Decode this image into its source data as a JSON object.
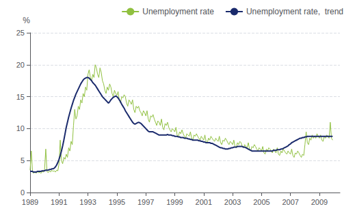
{
  "chart_data": {
    "type": "line",
    "ylabel": "%",
    "x": [
      1989,
      1989.0833333333333,
      1989.1666666666667,
      1989.25,
      1989.3333333333333,
      1989.4166666666667,
      1989.5,
      1989.5833333333333,
      1989.6666666666667,
      1989.75,
      1989.8333333333333,
      1989.9166666666667,
      1990,
      1990.0833333333333,
      1990.1666666666667,
      1990.25,
      1990.3333333333333,
      1990.4166666666667,
      1990.5,
      1990.5833333333333,
      1990.6666666666667,
      1990.75,
      1990.8333333333333,
      1990.9166666666667,
      1991,
      1991.0833333333333,
      1991.1666666666667,
      1991.25,
      1991.3333333333333,
      1991.4166666666667,
      1991.5,
      1991.5833333333333,
      1991.6666666666667,
      1991.75,
      1991.8333333333333,
      1991.9166666666667,
      1992,
      1992.0833333333333,
      1992.1666666666667,
      1992.25,
      1992.3333333333333,
      1992.4166666666667,
      1992.5,
      1992.5833333333333,
      1992.6666666666667,
      1992.75,
      1992.8333333333333,
      1992.9166666666667,
      1993,
      1993.0833333333333,
      1993.1666666666667,
      1993.25,
      1993.3333333333333,
      1993.4166666666667,
      1993.5,
      1993.5833333333333,
      1993.6666666666667,
      1993.75,
      1993.8333333333333,
      1993.9166666666667,
      1994,
      1994.0833333333333,
      1994.1666666666667,
      1994.25,
      1994.3333333333333,
      1994.4166666666667,
      1994.5,
      1994.5833333333333,
      1994.6666666666667,
      1994.75,
      1994.8333333333333,
      1994.9166666666667,
      1995,
      1995.0833333333333,
      1995.1666666666667,
      1995.25,
      1995.3333333333333,
      1995.4166666666667,
      1995.5,
      1995.5833333333333,
      1995.6666666666667,
      1995.75,
      1995.8333333333333,
      1995.9166666666667,
      1996,
      1996.0833333333333,
      1996.1666666666667,
      1996.25,
      1996.3333333333333,
      1996.4166666666667,
      1996.5,
      1996.5833333333333,
      1996.6666666666667,
      1996.75,
      1996.8333333333333,
      1996.9166666666667,
      1997,
      1997.0833333333333,
      1997.1666666666667,
      1997.25,
      1997.3333333333333,
      1997.4166666666667,
      1997.5,
      1997.5833333333333,
      1997.6666666666667,
      1997.75,
      1997.8333333333333,
      1997.9166666666667,
      1998,
      1998.0833333333333,
      1998.1666666666667,
      1998.25,
      1998.3333333333333,
      1998.4166666666667,
      1998.5,
      1998.5833333333333,
      1998.6666666666667,
      1998.75,
      1998.8333333333333,
      1998.9166666666667,
      1999,
      1999.0833333333333,
      1999.1666666666667,
      1999.25,
      1999.3333333333333,
      1999.4166666666667,
      1999.5,
      1999.5833333333333,
      1999.6666666666667,
      1999.75,
      1999.8333333333333,
      1999.9166666666667,
      2000,
      2000.0833333333333,
      2000.1666666666667,
      2000.25,
      2000.3333333333333,
      2000.4166666666667,
      2000.5,
      2000.5833333333333,
      2000.6666666666667,
      2000.75,
      2000.8333333333333,
      2000.9166666666667,
      2001,
      2001.0833333333333,
      2001.1666666666667,
      2001.25,
      2001.3333333333333,
      2001.4166666666667,
      2001.5,
      2001.5833333333333,
      2001.6666666666667,
      2001.75,
      2001.8333333333333,
      2001.9166666666667,
      2002,
      2002.0833333333333,
      2002.1666666666667,
      2002.25,
      2002.3333333333333,
      2002.4166666666667,
      2002.5,
      2002.5833333333333,
      2002.6666666666667,
      2002.75,
      2002.8333333333333,
      2002.9166666666667,
      2003,
      2003.0833333333333,
      2003.1666666666667,
      2003.25,
      2003.3333333333333,
      2003.4166666666667,
      2003.5,
      2003.5833333333333,
      2003.6666666666667,
      2003.75,
      2003.8333333333333,
      2003.9166666666667,
      2004,
      2004.0833333333333,
      2004.1666666666667,
      2004.25,
      2004.3333333333333,
      2004.4166666666667,
      2004.5,
      2004.5833333333333,
      2004.6666666666667,
      2004.75,
      2004.8333333333333,
      2004.9166666666667,
      2005,
      2005.0833333333333,
      2005.1666666666667,
      2005.25,
      2005.3333333333333,
      2005.4166666666667,
      2005.5,
      2005.5833333333333,
      2005.6666666666667,
      2005.75,
      2005.8333333333333,
      2005.9166666666667,
      2006,
      2006.0833333333333,
      2006.1666666666667,
      2006.25,
      2006.3333333333333,
      2006.4166666666667,
      2006.5,
      2006.5833333333333,
      2006.6666666666667,
      2006.75,
      2006.8333333333333,
      2006.9166666666667,
      2007,
      2007.0833333333333,
      2007.1666666666667,
      2007.25,
      2007.3333333333333,
      2007.4166666666667,
      2007.5,
      2007.5833333333333,
      2007.6666666666667,
      2007.75,
      2007.8333333333333,
      2007.9166666666667,
      2008,
      2008.0833333333333,
      2008.1666666666667,
      2008.25,
      2008.3333333333333,
      2008.4166666666667,
      2008.5,
      2008.5833333333333,
      2008.6666666666667,
      2008.75,
      2008.8333333333333,
      2008.9166666666667,
      2009,
      2009.0833333333333,
      2009.1666666666667,
      2009.25,
      2009.3333333333333,
      2009.4166666666667,
      2009.5,
      2009.5833333333333,
      2009.6666666666667,
      2009.75,
      2009.8333333333333,
      2009.9166666666667
    ],
    "series": [
      {
        "name": "Unemployment rate",
        "color": "#90c040",
        "values": [
          3.5,
          6.5,
          3.2,
          3.0,
          3.2,
          3.0,
          3.3,
          3.1,
          3.2,
          3.0,
          3.3,
          3.2,
          3.6,
          6.8,
          3.3,
          3.1,
          3.4,
          3.2,
          3.5,
          3.3,
          3.4,
          3.2,
          3.5,
          3.4,
          4.5,
          8.2,
          5.0,
          4.5,
          5.5,
          5.2,
          6.0,
          5.5,
          7.0,
          6.5,
          8.0,
          7.5,
          10.5,
          13.0,
          11.5,
          12.0,
          13.5,
          13.0,
          14.5,
          14.0,
          15.5,
          15.0,
          16.5,
          16.0,
          18.5,
          19.2,
          18.0,
          17.5,
          18.5,
          18.0,
          20.0,
          19.5,
          18.5,
          18.0,
          19.5,
          18.8,
          17.5,
          17.0,
          16.0,
          15.5,
          16.5,
          16.0,
          17.0,
          16.5,
          15.5,
          15.0,
          16.0,
          15.5,
          15.2,
          15.8,
          14.5,
          14.0,
          15.0,
          14.8,
          15.3,
          15.0,
          14.0,
          13.5,
          14.5,
          14.2,
          13.8,
          14.5,
          13.0,
          12.5,
          13.5,
          13.2,
          13.5,
          12.8,
          12.5,
          12.0,
          12.8,
          12.5,
          12.0,
          12.8,
          11.5,
          11.0,
          12.0,
          11.8,
          12.2,
          11.5,
          11.0,
          10.5,
          11.2,
          11.0,
          10.5,
          11.5,
          10.2,
          9.8,
          10.8,
          10.5,
          11.0,
          10.2,
          9.8,
          9.5,
          10.0,
          9.8,
          9.5,
          10.2,
          9.0,
          8.8,
          9.5,
          9.2,
          9.8,
          9.2,
          8.8,
          8.5,
          9.2,
          9.0,
          8.8,
          9.5,
          8.5,
          8.2,
          9.0,
          8.8,
          9.2,
          8.8,
          8.5,
          8.2,
          8.8,
          8.5,
          8.2,
          9.0,
          8.0,
          7.8,
          8.5,
          8.2,
          8.8,
          8.5,
          8.2,
          8.0,
          8.5,
          8.2,
          8.0,
          8.8,
          7.8,
          7.5,
          8.2,
          8.0,
          8.5,
          8.2,
          7.8,
          7.5,
          8.0,
          7.8,
          7.5,
          8.2,
          7.2,
          7.0,
          7.8,
          7.5,
          8.0,
          7.8,
          7.2,
          7.0,
          7.5,
          7.2,
          7.0,
          7.8,
          6.8,
          6.5,
          7.2,
          7.0,
          7.5,
          7.2,
          6.8,
          6.5,
          7.0,
          6.8,
          6.5,
          7.2,
          6.2,
          6.0,
          6.8,
          6.5,
          7.0,
          6.8,
          6.5,
          6.2,
          6.8,
          6.5,
          6.2,
          7.0,
          6.0,
          5.8,
          6.5,
          6.2,
          6.8,
          6.5,
          6.2,
          6.0,
          6.5,
          6.2,
          6.0,
          6.8,
          5.8,
          5.5,
          6.2,
          6.0,
          6.5,
          6.2,
          5.8,
          5.5,
          6.0,
          5.8,
          7.5,
          9.5,
          7.8,
          7.5,
          8.5,
          8.2,
          9.0,
          8.5,
          8.8,
          8.5,
          9.2,
          8.8,
          8.5,
          9.0,
          8.2,
          8.0,
          8.8,
          8.5,
          9.0,
          8.8,
          8.5,
          11.0,
          8.5,
          8.2
        ]
      },
      {
        "name": "Unemployment rate,  trend",
        "color": "#1a2a6c",
        "values": [
          3.3,
          3.3,
          3.3,
          3.2,
          3.2,
          3.2,
          3.3,
          3.3,
          3.3,
          3.3,
          3.4,
          3.4,
          3.4,
          3.5,
          3.5,
          3.5,
          3.6,
          3.6,
          3.7,
          3.7,
          3.8,
          4.0,
          4.3,
          4.7,
          5.2,
          5.8,
          6.5,
          7.3,
          8.2,
          9.2,
          10.2,
          11.0,
          11.8,
          12.5,
          13.2,
          13.8,
          14.4,
          14.9,
          15.4,
          15.8,
          16.2,
          16.6,
          17.0,
          17.3,
          17.6,
          17.8,
          17.9,
          18.0,
          18.0,
          17.9,
          17.7,
          17.5,
          17.2,
          17.0,
          16.8,
          16.5,
          16.2,
          15.9,
          15.6,
          15.3,
          15.0,
          14.8,
          14.6,
          14.4,
          14.2,
          14.0,
          14.2,
          14.5,
          14.7,
          14.9,
          15.0,
          15.1,
          15.0,
          14.8,
          14.5,
          14.2,
          13.8,
          13.5,
          13.2,
          12.8,
          12.5,
          12.2,
          11.9,
          11.6,
          11.3,
          11.0,
          10.8,
          10.7,
          10.8,
          10.9,
          11.0,
          10.9,
          10.8,
          10.6,
          10.4,
          10.2,
          10.0,
          9.8,
          9.6,
          9.5,
          9.5,
          9.5,
          9.5,
          9.4,
          9.3,
          9.2,
          9.1,
          9.0,
          9.0,
          9.0,
          9.0,
          9.0,
          9.0,
          9.0,
          9.1,
          9.0,
          9.0,
          9.0,
          8.9,
          8.9,
          8.8,
          8.8,
          8.8,
          8.7,
          8.7,
          8.6,
          8.6,
          8.6,
          8.5,
          8.5,
          8.5,
          8.4,
          8.4,
          8.3,
          8.3,
          8.2,
          8.2,
          8.2,
          8.2,
          8.2,
          8.1,
          8.1,
          8.0,
          8.0,
          7.9,
          7.9,
          7.8,
          7.8,
          7.8,
          7.8,
          7.7,
          7.7,
          7.6,
          7.5,
          7.4,
          7.3,
          7.2,
          7.1,
          7.0,
          7.0,
          6.9,
          6.9,
          6.8,
          6.8,
          6.8,
          6.9,
          6.9,
          7.0,
          7.0,
          7.1,
          7.1,
          7.1,
          7.2,
          7.2,
          7.2,
          7.2,
          7.2,
          7.1,
          7.1,
          7.0,
          6.9,
          6.8,
          6.7,
          6.6,
          6.5,
          6.5,
          6.5,
          6.5,
          6.5,
          6.5,
          6.5,
          6.5,
          6.5,
          6.5,
          6.5,
          6.5,
          6.5,
          6.5,
          6.5,
          6.5,
          6.5,
          6.5,
          6.6,
          6.6,
          6.6,
          6.7,
          6.7,
          6.7,
          6.8,
          6.8,
          6.9,
          7.0,
          7.1,
          7.2,
          7.3,
          7.5,
          7.6,
          7.8,
          7.9,
          8.0,
          8.1,
          8.2,
          8.3,
          8.4,
          8.5,
          8.5,
          8.6,
          8.6,
          8.7,
          8.7,
          8.8,
          8.8,
          8.8,
          8.8,
          8.8,
          8.8,
          8.8,
          8.8,
          8.8,
          8.8,
          8.8,
          8.8,
          8.8,
          8.8,
          8.8,
          8.8,
          8.8,
          8.8,
          8.8,
          8.8,
          8.8,
          8.8
        ]
      }
    ],
    "xlim": [
      1989.0,
      2010.42
    ],
    "xticks": [
      1989,
      1991,
      1993,
      1995,
      1997,
      1999,
      2001,
      2003,
      2005,
      2007,
      2009
    ],
    "ylim": [
      0,
      25
    ],
    "yticks": [
      0,
      5,
      10,
      15,
      20,
      25
    ],
    "grid": true,
    "legend": "upper right"
  }
}
